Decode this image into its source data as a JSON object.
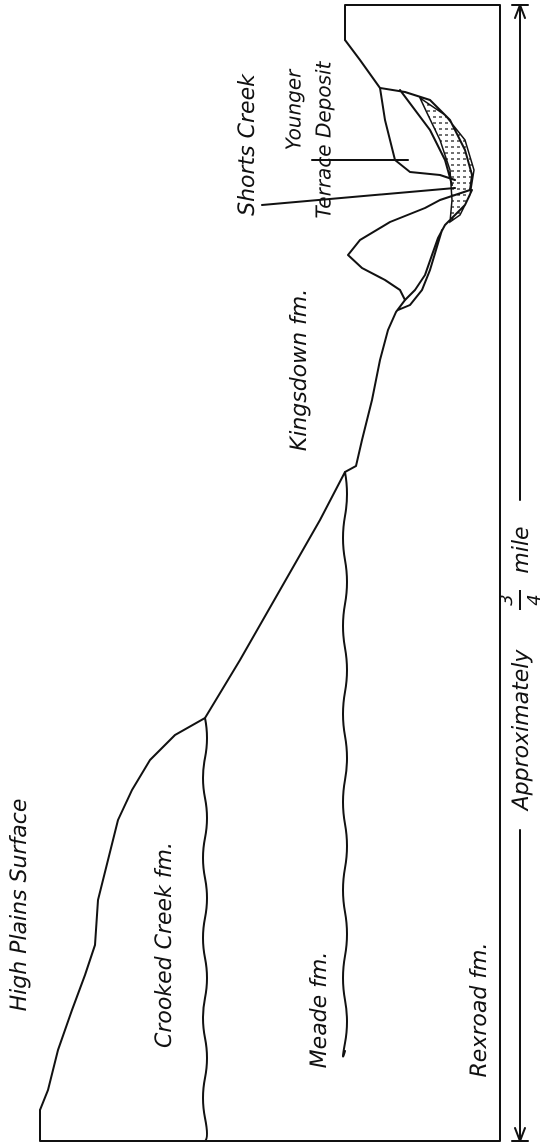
{
  "labels": {
    "surface": "High Plains Surface",
    "crooked_creek": "Crooked Creek fm.",
    "meade": "Meade fm.",
    "rexroad": "Rexroad fm.",
    "kingsdown": "Kingsdown fm.",
    "shorts_creek": "Shorts Creek",
    "younger": "Younger",
    "terrace_deposit": "Terrace Deposit"
  },
  "scale": {
    "label": "Approximately",
    "numerator": "3",
    "denominator": "4",
    "unit": "mile"
  }
}
